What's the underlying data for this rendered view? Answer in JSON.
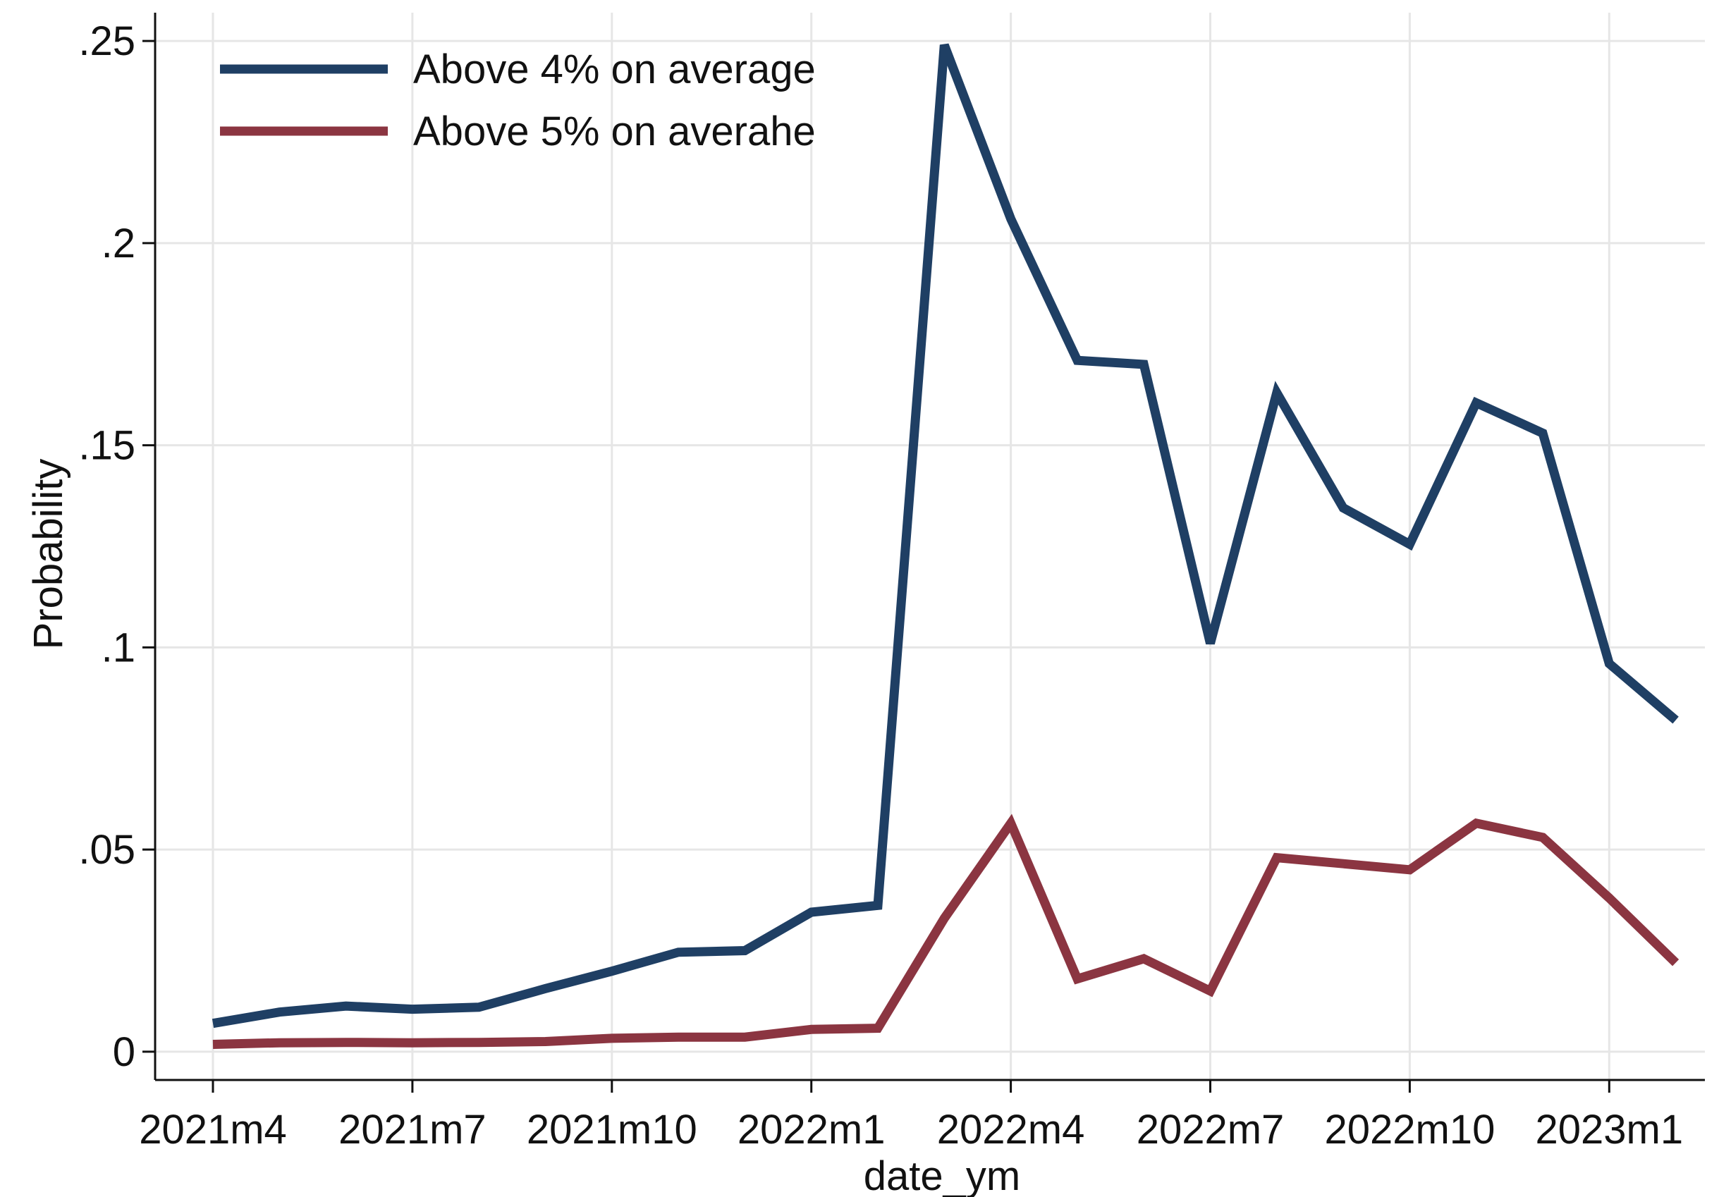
{
  "chart_data": {
    "type": "line",
    "title": "",
    "xlabel": "date_ym",
    "ylabel": "Probability",
    "x": [
      "2021m4",
      "2021m5",
      "2021m6",
      "2021m7",
      "2021m8",
      "2021m9",
      "2021m10",
      "2021m11",
      "2021m12",
      "2022m1",
      "2022m2",
      "2022m3",
      "2022m4",
      "2022m5",
      "2022m6",
      "2022m7",
      "2022m8",
      "2022m9",
      "2022m10",
      "2022m11",
      "2022m12",
      "2023m1",
      "2023m2"
    ],
    "xticks": [
      "2021m4",
      "2021m7",
      "2021m10",
      "2022m1",
      "2022m4",
      "2022m7",
      "2022m10",
      "2023m1"
    ],
    "yticks": [
      {
        "value": 0,
        "label": "0"
      },
      {
        "value": 0.05,
        "label": ".05"
      },
      {
        "value": 0.1,
        "label": ".1"
      },
      {
        "value": 0.15,
        "label": ".15"
      },
      {
        "value": 0.2,
        "label": ".2"
      },
      {
        "value": 0.25,
        "label": ".25"
      }
    ],
    "ylim": [
      -0.007,
      0.257
    ],
    "grid": true,
    "legend_position": "top-left",
    "series": [
      {
        "name": "Above 4% on average",
        "color": "#1f3f64",
        "values": [
          0.007,
          0.0098,
          0.0113,
          0.0105,
          0.011,
          0.0156,
          0.0199,
          0.0246,
          0.025,
          0.0345,
          0.0362,
          0.249,
          0.206,
          0.171,
          0.17,
          0.101,
          0.163,
          0.1345,
          0.1255,
          0.1605,
          0.153,
          0.096,
          0.082
        ]
      },
      {
        "name": "Above 5% on averahe",
        "color": "#8b3541",
        "values": [
          0.0018,
          0.0022,
          0.0023,
          0.0022,
          0.0023,
          0.0025,
          0.0033,
          0.0036,
          0.0036,
          0.0055,
          0.0058,
          0.033,
          0.0565,
          0.018,
          0.023,
          0.015,
          0.048,
          0.0465,
          0.045,
          0.0565,
          0.053,
          0.038,
          0.022
        ]
      }
    ]
  }
}
